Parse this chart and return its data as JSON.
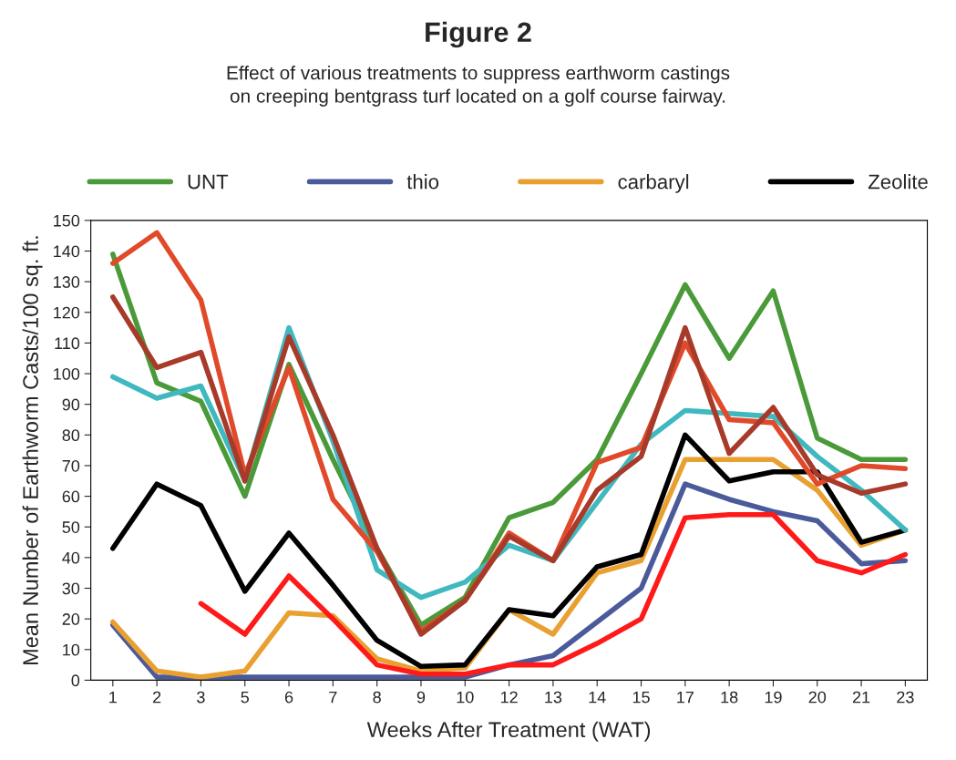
{
  "chart_data": {
    "type": "line",
    "title": "Figure 2",
    "subtitle": "Effect of various treatments to suppress earthworm castings\non creeping bentgrass turf located on a golf course fairway.",
    "xlabel": "Weeks After Treatment (WAT)",
    "ylabel": "Mean Number of Earthworm Casts/100 sq. ft.",
    "categories": [
      "1",
      "2",
      "3",
      "5",
      "6",
      "7",
      "8",
      "9",
      "10",
      "12",
      "13",
      "14",
      "15",
      "17",
      "18",
      "19",
      "20",
      "21",
      "23"
    ],
    "series": [
      {
        "name": "UNT",
        "color": "#4a9a3a",
        "values": [
          139,
          97,
          91,
          60,
          103,
          72,
          43,
          18,
          27,
          53,
          58,
          72,
          100,
          129,
          105,
          127,
          79,
          72,
          72
        ]
      },
      {
        "name": "thio",
        "color": "#4a5a9a",
        "values": [
          18,
          1,
          1,
          1,
          1,
          1,
          1,
          1,
          1,
          5,
          8,
          19,
          30,
          64,
          59,
          55,
          52,
          38,
          39
        ]
      },
      {
        "name": "carbaryl",
        "color": "#e8a030",
        "values": [
          19,
          3,
          1,
          3,
          22,
          21,
          7,
          3,
          4,
          23,
          15,
          35,
          39,
          72,
          72,
          72,
          62,
          44,
          49
        ]
      },
      {
        "color": "#ff1a1a",
        "values": [
          null,
          null,
          25,
          15,
          34,
          20,
          5,
          2,
          2,
          5,
          5,
          12,
          20,
          53,
          54,
          54,
          39,
          35,
          41
        ]
      },
      {
        "name": "Zeolite",
        "color": "#000000",
        "values": [
          43,
          64,
          57,
          29,
          48,
          31,
          13,
          4.5,
          5,
          23,
          21,
          37,
          41,
          80,
          65,
          68,
          68,
          45,
          49
        ]
      },
      {
        "color": "#40b8c0",
        "values": [
          99,
          92,
          96,
          65,
          115,
          78,
          36,
          27,
          32,
          44,
          39,
          58,
          77,
          88,
          87,
          86,
          73,
          62,
          49
        ]
      },
      {
        "color": "#e04a2a",
        "values": [
          136,
          146,
          124,
          67,
          102,
          59,
          42,
          16,
          26,
          48,
          39,
          71,
          76,
          110,
          85,
          84,
          64,
          70,
          69
        ]
      },
      {
        "color": "#a83a2a",
        "values": [
          125,
          102,
          107,
          65,
          112,
          80,
          43,
          15,
          26,
          47,
          39,
          62,
          73,
          115,
          74,
          89,
          67,
          61,
          64
        ]
      }
    ],
    "ylim": [
      0,
      150
    ],
    "yticks": [
      0,
      10,
      20,
      30,
      40,
      50,
      60,
      70,
      80,
      90,
      100,
      110,
      120,
      130,
      140,
      150
    ],
    "grid": false,
    "legend": "top",
    "marker": "none",
    "line_style": "solid"
  }
}
